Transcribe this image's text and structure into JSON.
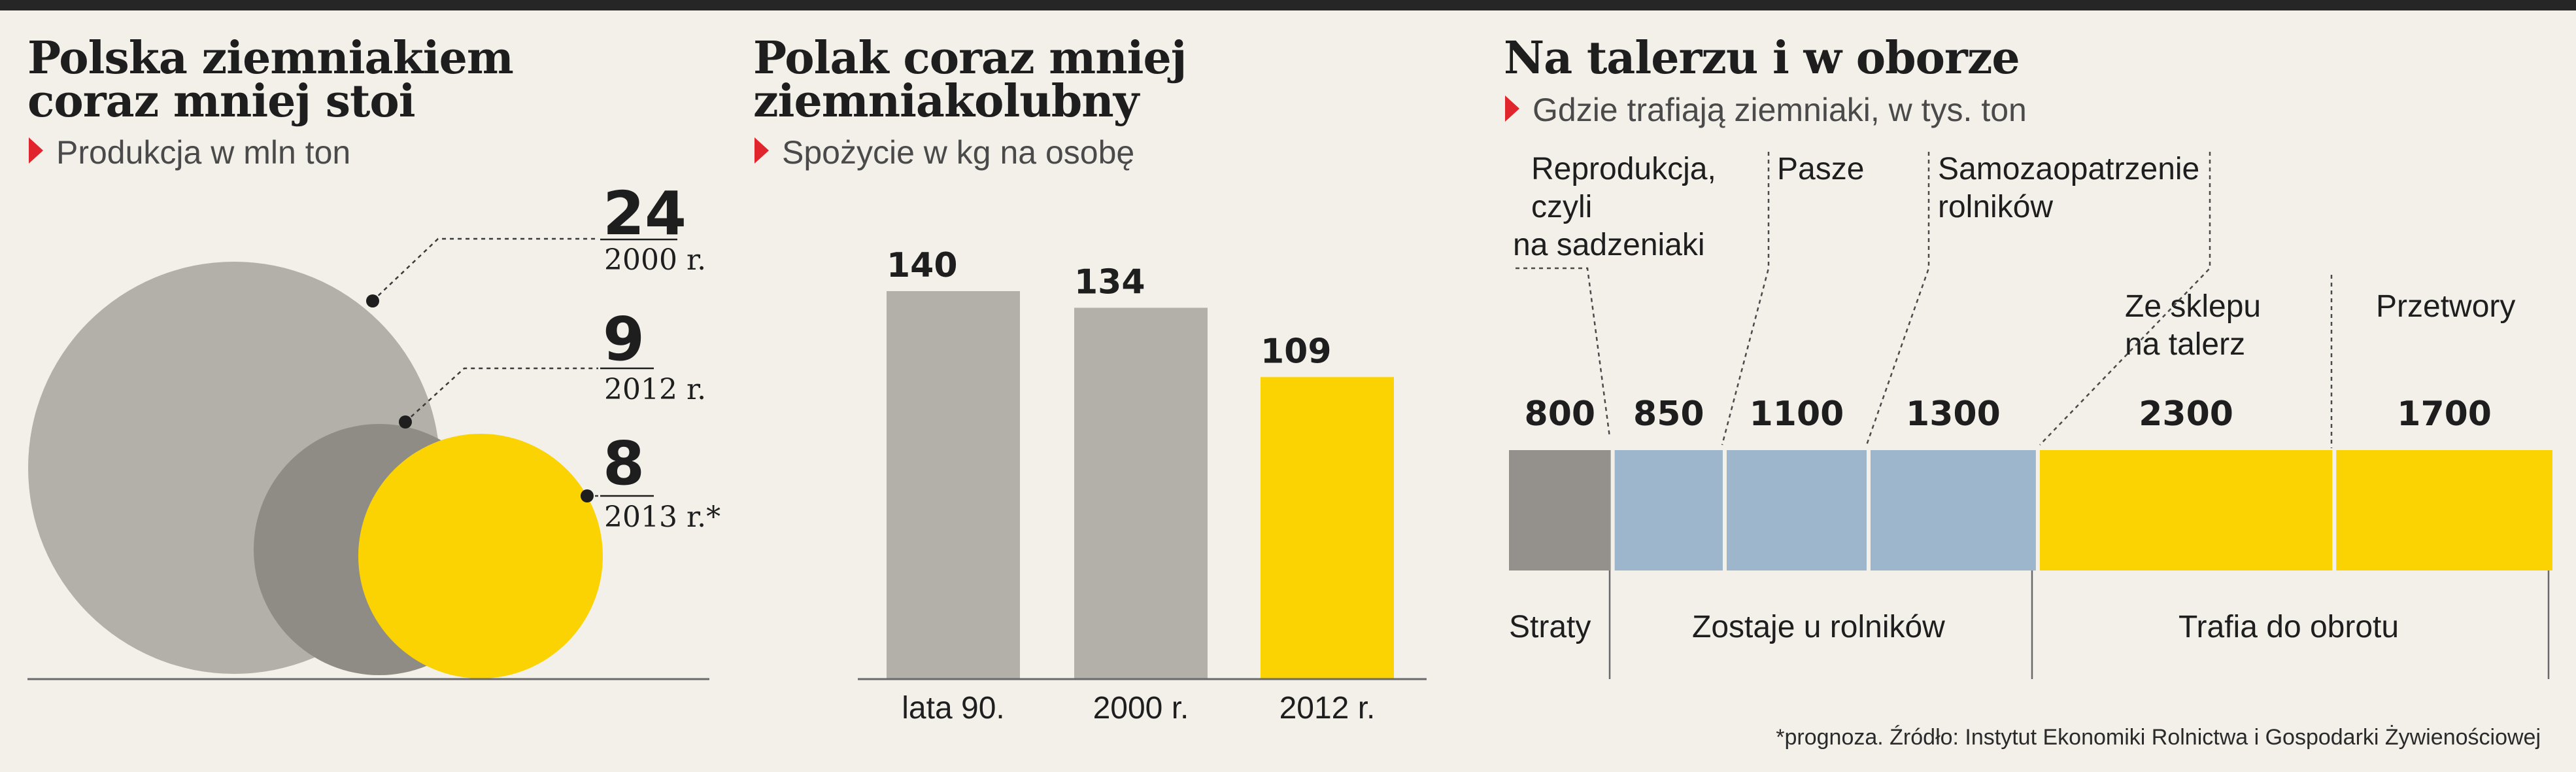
{
  "colors": {
    "gray_light": "#b3b0a9",
    "gray_mid": "#8f8c86",
    "gray_dark": "#94918c",
    "blue": "#9db6cb",
    "yellow": "#fbd202",
    "marker": "#e0262c",
    "background": "#f3f0ea"
  },
  "panel1": {
    "title_line1": "Polska ziemniakiem",
    "title_line2": "coraz mniej stoi",
    "subtitle": "Produkcja w mln ton"
  },
  "panel2": {
    "title_line1": "Polak coraz mniej",
    "title_line2": "ziemniakolubny",
    "subtitle": "Spożycie w kg na osobę"
  },
  "panel3": {
    "title": "Na talerzu i w oborze",
    "subtitle": "Gdzie trafiają ziemniaki, w tys. ton",
    "callouts": {
      "reprodukcja_l1": "Reprodukcja,",
      "reprodukcja_l2": "czyli",
      "reprodukcja_l3": "na sadzeniaki",
      "pasze": "Pasze",
      "samo_l1": "Samozaopatrzenie",
      "samo_l2": "rolników",
      "sklep_l1": "Ze sklepu",
      "sklep_l2": "na talerz",
      "przetwory": "Przetwory"
    },
    "groups": {
      "straty": "Straty",
      "zostaje": "Zostaje u rolników",
      "trafia": "Trafia do obrotu"
    }
  },
  "footnote": "*prognoza. Źródło: Instytut Ekonomiki Rolnictwa i Gospodarki Żywienościowej",
  "chart_data": [
    {
      "type": "bubble",
      "title": "Polska ziemniakiem coraz mniej stoi",
      "subtitle": "Produkcja w mln ton",
      "categories": [
        "2000 r.",
        "2012 r.",
        "2013 r.*"
      ],
      "values": [
        24,
        9,
        8
      ],
      "colors": [
        "#b3b0a9",
        "#8f8c86",
        "#fbd202"
      ]
    },
    {
      "type": "bar",
      "title": "Polak coraz mniej ziemniakolubny",
      "subtitle": "Spożycie w kg na osobę",
      "categories": [
        "lata 90.",
        "2000 r.",
        "2012 r."
      ],
      "values": [
        140,
        134,
        109
      ],
      "colors": [
        "#b3b0a9",
        "#b3b0a9",
        "#fbd202"
      ]
    },
    {
      "type": "bar",
      "orientation": "horizontal-stacked",
      "title": "Na talerzu i w oborze",
      "subtitle": "Gdzie trafiają ziemniaki, w tys. ton",
      "segments": [
        {
          "name": "Straty",
          "value": 800,
          "group": "Straty",
          "color": "#94918c"
        },
        {
          "name": "Reprodukcja, czyli na sadzeniaki",
          "value": 850,
          "group": "Zostaje u rolników",
          "color": "#9db6cb"
        },
        {
          "name": "Pasze",
          "value": 1100,
          "group": "Zostaje u rolników",
          "color": "#9db6cb"
        },
        {
          "name": "Samozaopatrzenie rolników",
          "value": 1300,
          "group": "Zostaje u rolników",
          "color": "#9db6cb"
        },
        {
          "name": "Ze sklepu na talerz",
          "value": 2300,
          "group": "Trafia do obrotu",
          "color": "#fbd202"
        },
        {
          "name": "Przetwory",
          "value": 1700,
          "group": "Trafia do obrotu",
          "color": "#fbd202"
        }
      ]
    }
  ]
}
